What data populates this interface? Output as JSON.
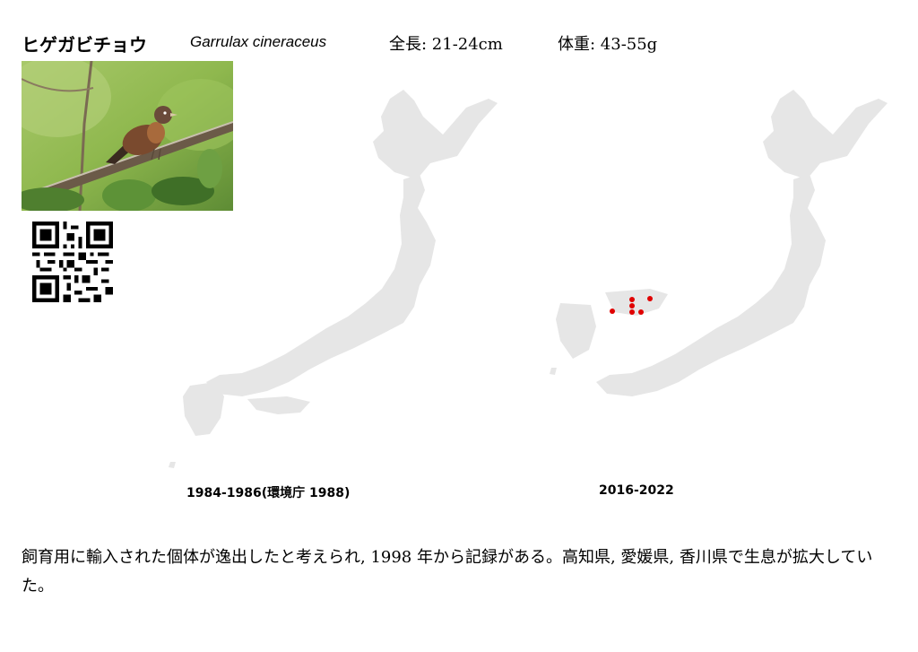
{
  "header": {
    "japanese_name": "ヒゲガビチョウ",
    "scientific_name": "Garrulax cineraceus",
    "length": "全長: 21-24cm",
    "weight": "体重: 43-55g"
  },
  "photo": {
    "subject": "bird-perched-on-branch"
  },
  "qr": {
    "icon": "qr-code-icon"
  },
  "maps": [
    {
      "caption": "1984-1986(環境庁 1988)"
    },
    {
      "caption": "2016-2022",
      "record_color": "#e00000"
    }
  ],
  "map_base_color": "#e6e6e6",
  "description": "飼育用に輸入された個体が逸出したと考えられ, 1998 年から記録がある。高知県, 愛媛県, 香川県で生息が拡大していた。"
}
